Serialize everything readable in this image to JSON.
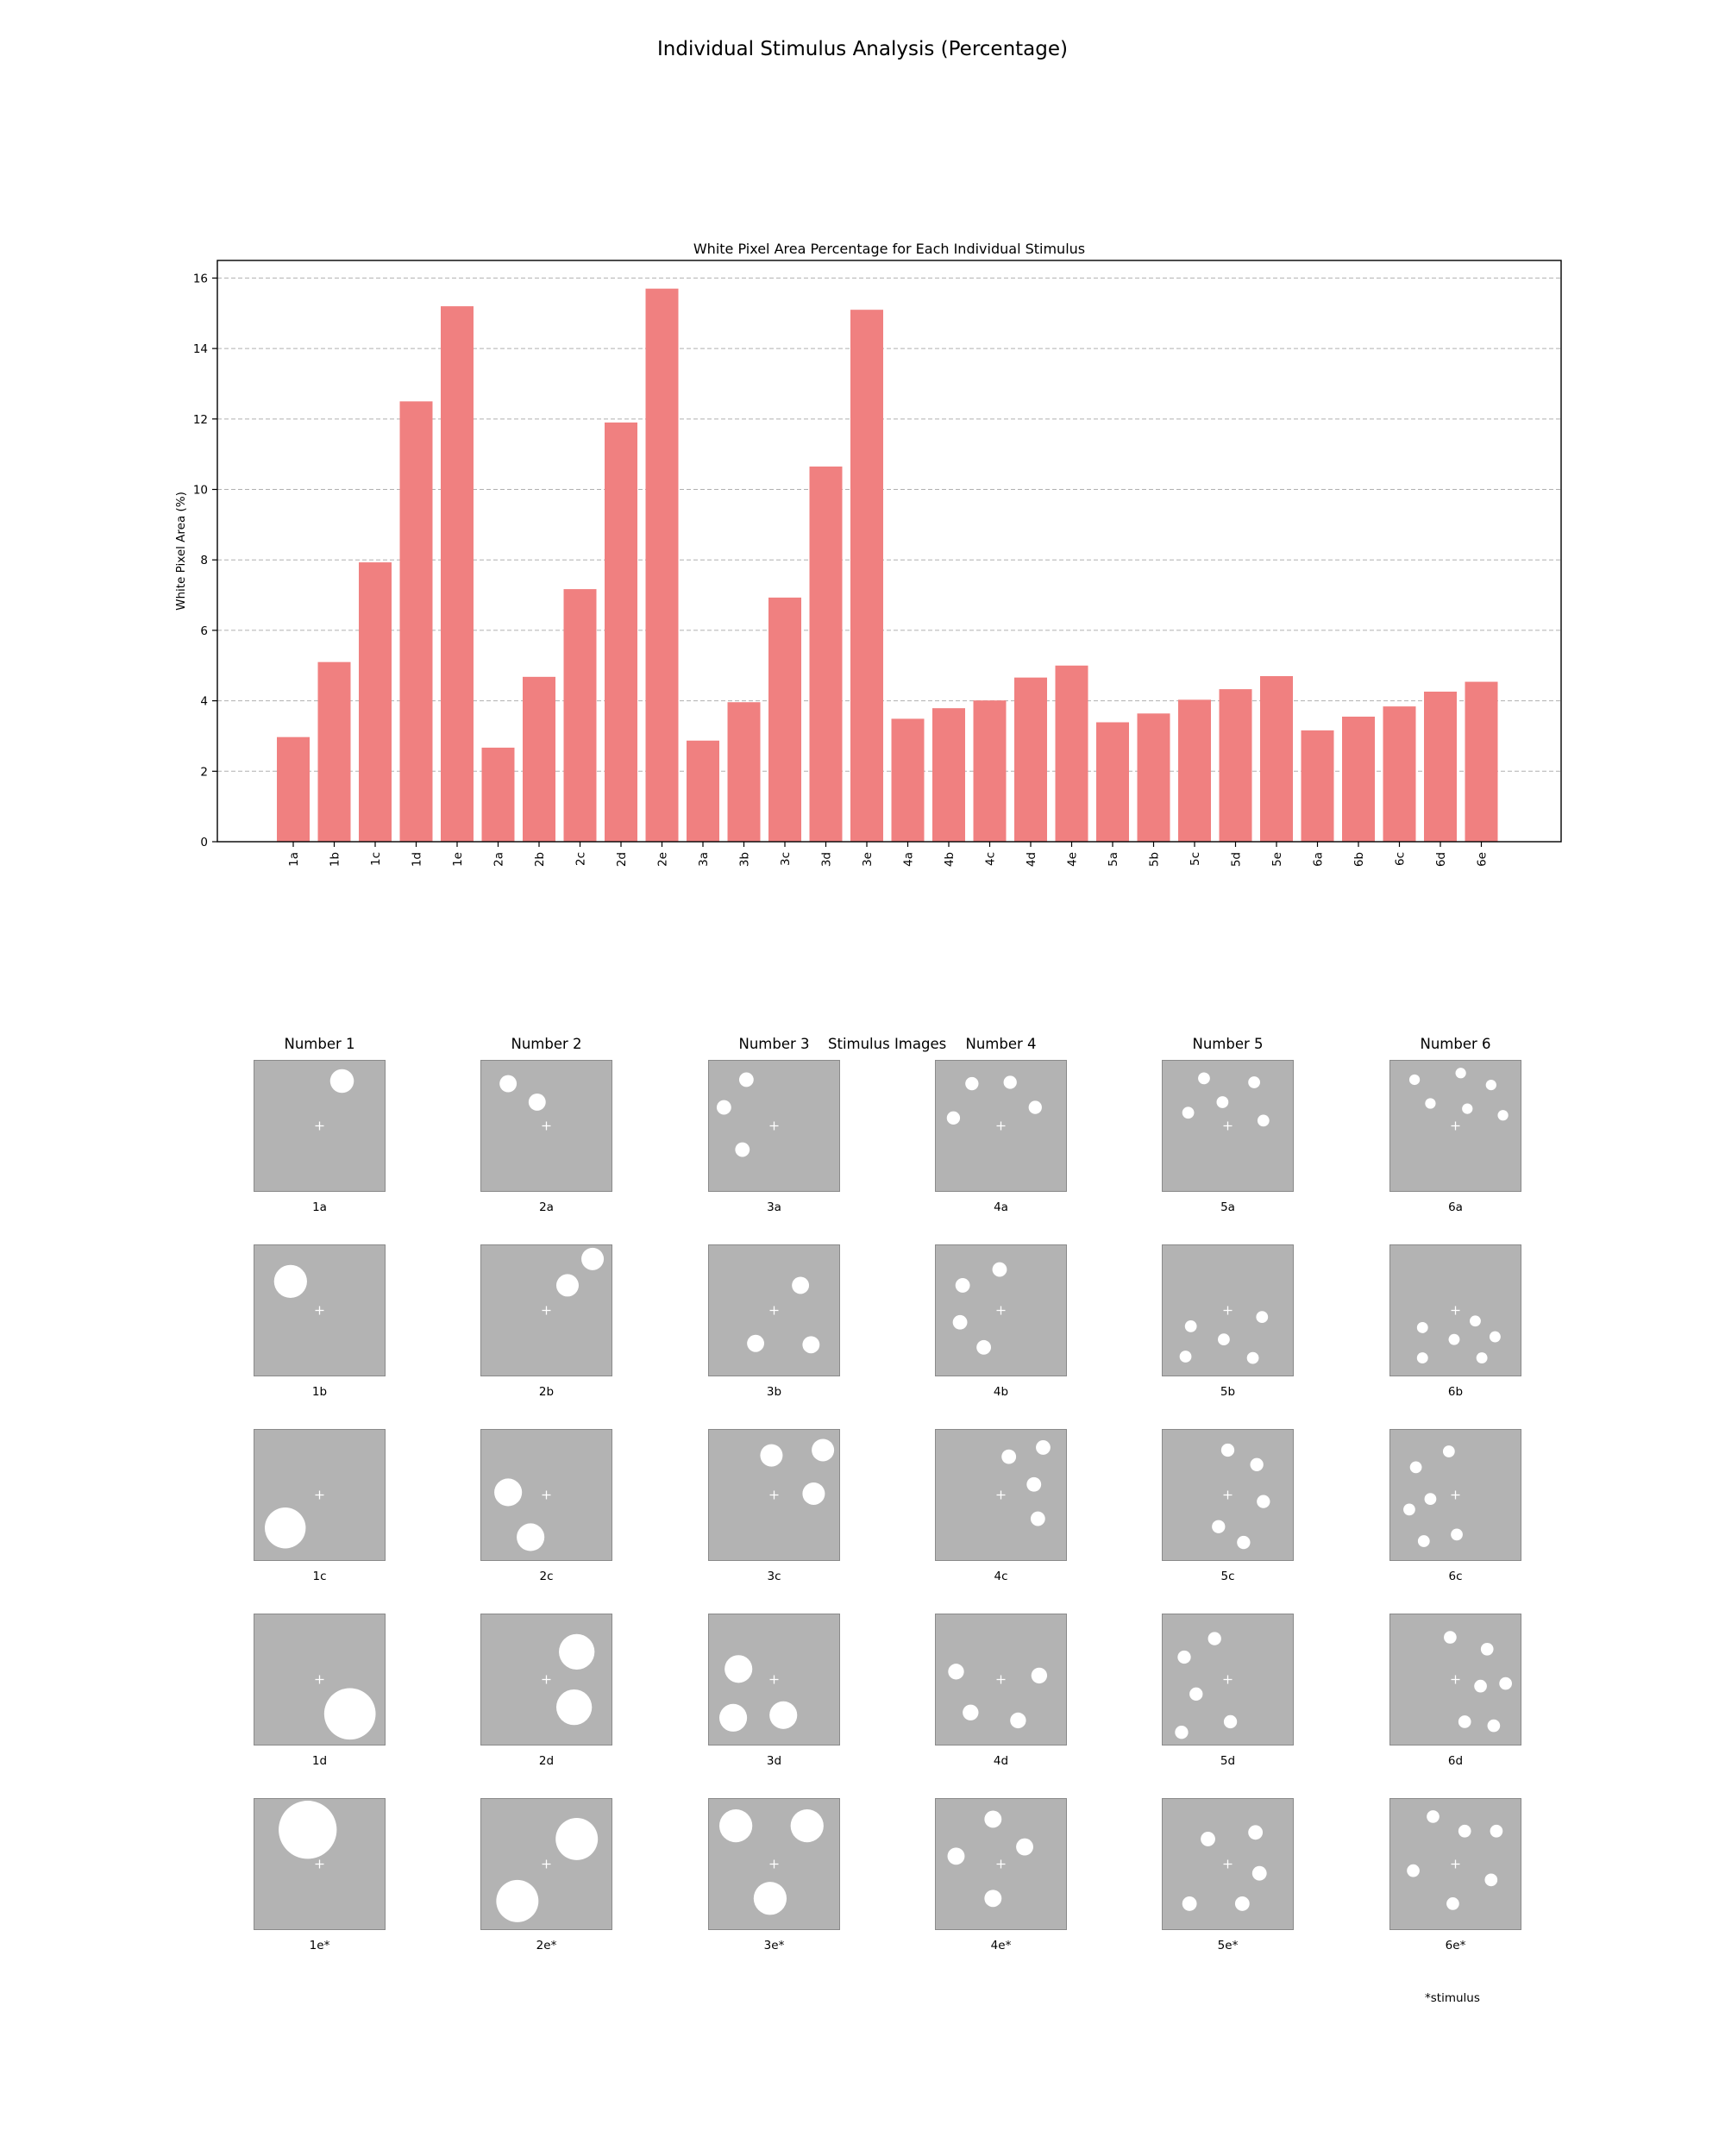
{
  "figure_title": "Individual Stimulus Analysis (Percentage)",
  "chart_data": {
    "type": "bar",
    "title": "White Pixel Area Percentage for Each Individual Stimulus",
    "xlabel": "",
    "ylabel": "White Pixel Area (%)",
    "ylim": [
      0,
      16.5
    ],
    "yticks": [
      0,
      2,
      4,
      6,
      8,
      10,
      12,
      14,
      16
    ],
    "grid": "y-dashed",
    "color": "#F08080",
    "categories": [
      "1a",
      "1b",
      "1c",
      "1d",
      "1e",
      "2a",
      "2b",
      "2c",
      "2d",
      "2e",
      "3a",
      "3b",
      "3c",
      "3d",
      "3e",
      "4a",
      "4b",
      "4c",
      "4d",
      "4e",
      "5a",
      "5b",
      "5c",
      "5d",
      "5e",
      "6a",
      "6b",
      "6c",
      "6d",
      "6e"
    ],
    "values": [
      2.97,
      5.1,
      7.93,
      12.5,
      15.2,
      2.67,
      4.68,
      7.17,
      11.9,
      15.7,
      2.87,
      3.96,
      6.93,
      10.65,
      15.1,
      3.49,
      3.79,
      4.01,
      4.66,
      5.0,
      3.39,
      3.64,
      4.03,
      4.33,
      4.7,
      3.16,
      3.55,
      3.84,
      4.26,
      4.54
    ]
  },
  "stimulus_grid": {
    "title": "Stimulus Images",
    "background": "#B3B3B3",
    "columns": [
      {
        "label": "Number 1",
        "stimuli": [
          {
            "id": "1a",
            "caption": "1a",
            "dots": [
              [
                0.67,
                0.16,
                0.09
              ]
            ]
          },
          {
            "id": "1b",
            "caption": "1b",
            "dots": [
              [
                0.28,
                0.28,
                0.125
              ]
            ]
          },
          {
            "id": "1c",
            "caption": "1c",
            "dots": [
              [
                0.24,
                0.75,
                0.155
              ]
            ]
          },
          {
            "id": "1d",
            "caption": "1d",
            "dots": [
              [
                0.73,
                0.76,
                0.195
              ]
            ]
          },
          {
            "id": "1e*",
            "caption": "1e*",
            "dots": [
              [
                0.41,
                0.24,
                0.22
              ]
            ]
          }
        ]
      },
      {
        "label": "Number 2",
        "stimuli": [
          {
            "id": "2a",
            "caption": "2a",
            "dots": [
              [
                0.21,
                0.18,
                0.065
              ],
              [
                0.43,
                0.32,
                0.065
              ]
            ]
          },
          {
            "id": "2b",
            "caption": "2b",
            "dots": [
              [
                0.66,
                0.31,
                0.085
              ],
              [
                0.85,
                0.11,
                0.085
              ]
            ]
          },
          {
            "id": "2c",
            "caption": "2c",
            "dots": [
              [
                0.21,
                0.48,
                0.105
              ],
              [
                0.38,
                0.82,
                0.105
              ]
            ]
          },
          {
            "id": "2d",
            "caption": "2d",
            "dots": [
              [
                0.73,
                0.29,
                0.135
              ],
              [
                0.71,
                0.71,
                0.135
              ]
            ]
          },
          {
            "id": "2e*",
            "caption": "2e*",
            "dots": [
              [
                0.73,
                0.31,
                0.16
              ],
              [
                0.28,
                0.78,
                0.16
              ]
            ]
          }
        ]
      },
      {
        "label": "Number 3",
        "stimuli": [
          {
            "id": "3a",
            "caption": "3a",
            "dots": [
              [
                0.29,
                0.15,
                0.055
              ],
              [
                0.12,
                0.36,
                0.055
              ],
              [
                0.26,
                0.68,
                0.055
              ]
            ]
          },
          {
            "id": "3b",
            "caption": "3b",
            "dots": [
              [
                0.7,
                0.31,
                0.065
              ],
              [
                0.36,
                0.75,
                0.065
              ],
              [
                0.78,
                0.76,
                0.065
              ]
            ]
          },
          {
            "id": "3c",
            "caption": "3c",
            "dots": [
              [
                0.48,
                0.2,
                0.085
              ],
              [
                0.87,
                0.16,
                0.085
              ],
              [
                0.8,
                0.49,
                0.085
              ]
            ]
          },
          {
            "id": "3d",
            "caption": "3d",
            "dots": [
              [
                0.23,
                0.42,
                0.105
              ],
              [
                0.19,
                0.79,
                0.105
              ],
              [
                0.57,
                0.77,
                0.105
              ]
            ]
          },
          {
            "id": "3e*",
            "caption": "3e*",
            "dots": [
              [
                0.21,
                0.21,
                0.125
              ],
              [
                0.75,
                0.21,
                0.125
              ],
              [
                0.47,
                0.76,
                0.125
              ]
            ]
          }
        ]
      },
      {
        "label": "Number 4",
        "stimuli": [
          {
            "id": "4a",
            "caption": "4a",
            "dots": [
              [
                0.28,
                0.18,
                0.05
              ],
              [
                0.57,
                0.17,
                0.05
              ],
              [
                0.14,
                0.44,
                0.05
              ],
              [
                0.76,
                0.36,
                0.05
              ]
            ]
          },
          {
            "id": "4b",
            "caption": "4b",
            "dots": [
              [
                0.49,
                0.19,
                0.055
              ],
              [
                0.21,
                0.31,
                0.055
              ],
              [
                0.19,
                0.59,
                0.055
              ],
              [
                0.37,
                0.78,
                0.055
              ]
            ]
          },
          {
            "id": "4c",
            "caption": "4c",
            "dots": [
              [
                0.56,
                0.21,
                0.055
              ],
              [
                0.82,
                0.14,
                0.055
              ],
              [
                0.75,
                0.42,
                0.055
              ],
              [
                0.78,
                0.68,
                0.055
              ]
            ]
          },
          {
            "id": "4d",
            "caption": "4d",
            "dots": [
              [
                0.16,
                0.44,
                0.06
              ],
              [
                0.79,
                0.47,
                0.06
              ],
              [
                0.27,
                0.75,
                0.06
              ],
              [
                0.63,
                0.81,
                0.06
              ]
            ]
          },
          {
            "id": "4e*",
            "caption": "4e*",
            "dots": [
              [
                0.44,
                0.16,
                0.065
              ],
              [
                0.68,
                0.37,
                0.065
              ],
              [
                0.16,
                0.44,
                0.065
              ],
              [
                0.44,
                0.76,
                0.065
              ]
            ]
          }
        ]
      },
      {
        "label": "Number 5",
        "stimuli": [
          {
            "id": "5a",
            "caption": "5a",
            "dots": [
              [
                0.32,
                0.14,
                0.045
              ],
              [
                0.7,
                0.17,
                0.045
              ],
              [
                0.46,
                0.32,
                0.045
              ],
              [
                0.2,
                0.4,
                0.045
              ],
              [
                0.77,
                0.46,
                0.045
              ]
            ]
          },
          {
            "id": "5b",
            "caption": "5b",
            "dots": [
              [
                0.76,
                0.55,
                0.045
              ],
              [
                0.22,
                0.62,
                0.045
              ],
              [
                0.47,
                0.72,
                0.045
              ],
              [
                0.18,
                0.85,
                0.045
              ],
              [
                0.69,
                0.86,
                0.045
              ]
            ]
          },
          {
            "id": "5c",
            "caption": "5c",
            "dots": [
              [
                0.5,
                0.16,
                0.05
              ],
              [
                0.72,
                0.27,
                0.05
              ],
              [
                0.77,
                0.55,
                0.05
              ],
              [
                0.43,
                0.74,
                0.05
              ],
              [
                0.62,
                0.86,
                0.05
              ]
            ]
          },
          {
            "id": "5d",
            "caption": "5d",
            "dots": [
              [
                0.4,
                0.19,
                0.05
              ],
              [
                0.17,
                0.33,
                0.05
              ],
              [
                0.26,
                0.61,
                0.05
              ],
              [
                0.52,
                0.82,
                0.05
              ],
              [
                0.15,
                0.9,
                0.05
              ]
            ]
          },
          {
            "id": "5e*",
            "caption": "5e*",
            "dots": [
              [
                0.71,
                0.26,
                0.055
              ],
              [
                0.35,
                0.31,
                0.055
              ],
              [
                0.74,
                0.57,
                0.055
              ],
              [
                0.21,
                0.8,
                0.055
              ],
              [
                0.61,
                0.8,
                0.055
              ]
            ]
          }
        ]
      },
      {
        "label": "Number 6",
        "stimuli": [
          {
            "id": "6a",
            "caption": "6a",
            "dots": [
              [
                0.19,
                0.15,
                0.04
              ],
              [
                0.54,
                0.1,
                0.04
              ],
              [
                0.77,
                0.19,
                0.04
              ],
              [
                0.31,
                0.33,
                0.04
              ],
              [
                0.59,
                0.37,
                0.04
              ],
              [
                0.86,
                0.42,
                0.04
              ]
            ]
          },
          {
            "id": "6b",
            "caption": "6b",
            "dots": [
              [
                0.65,
                0.58,
                0.042
              ],
              [
                0.25,
                0.63,
                0.042
              ],
              [
                0.49,
                0.72,
                0.042
              ],
              [
                0.8,
                0.7,
                0.042
              ],
              [
                0.25,
                0.86,
                0.042
              ],
              [
                0.7,
                0.86,
                0.042
              ]
            ]
          },
          {
            "id": "6c",
            "caption": "6c",
            "dots": [
              [
                0.45,
                0.17,
                0.045
              ],
              [
                0.2,
                0.29,
                0.045
              ],
              [
                0.31,
                0.53,
                0.045
              ],
              [
                0.15,
                0.61,
                0.045
              ],
              [
                0.51,
                0.8,
                0.045
              ],
              [
                0.26,
                0.85,
                0.045
              ]
            ]
          },
          {
            "id": "6d",
            "caption": "6d",
            "dots": [
              [
                0.46,
                0.18,
                0.048
              ],
              [
                0.74,
                0.27,
                0.048
              ],
              [
                0.69,
                0.55,
                0.048
              ],
              [
                0.88,
                0.53,
                0.048
              ],
              [
                0.57,
                0.82,
                0.048
              ],
              [
                0.79,
                0.85,
                0.048
              ]
            ]
          },
          {
            "id": "6e*",
            "caption": "6e*",
            "dots": [
              [
                0.33,
                0.14,
                0.048
              ],
              [
                0.57,
                0.25,
                0.048
              ],
              [
                0.81,
                0.25,
                0.048
              ],
              [
                0.18,
                0.55,
                0.048
              ],
              [
                0.77,
                0.62,
                0.048
              ],
              [
                0.48,
                0.8,
                0.048
              ]
            ]
          }
        ]
      }
    ],
    "footnote": "*stimulus"
  }
}
